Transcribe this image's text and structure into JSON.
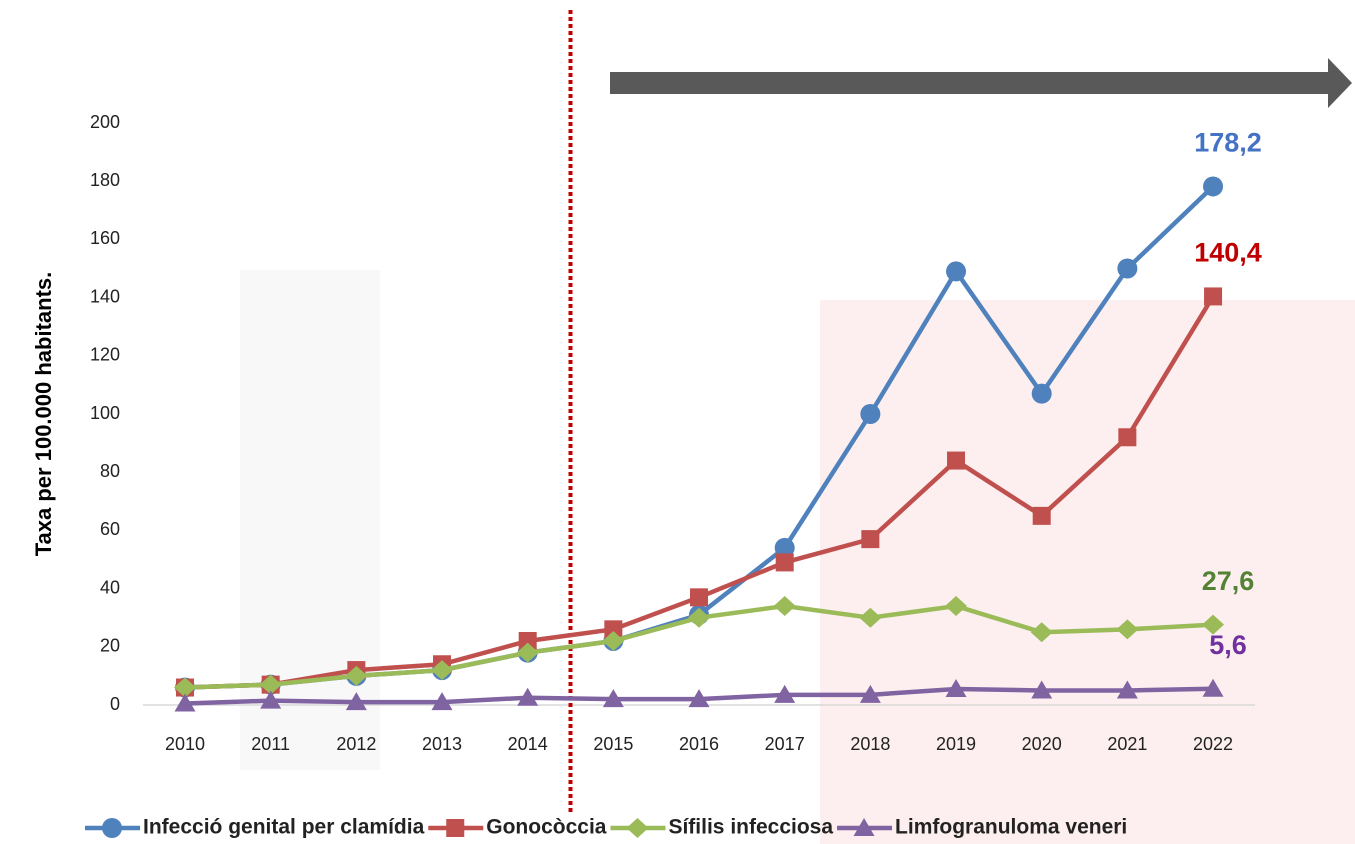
{
  "chart_data": {
    "type": "line",
    "y_axis_label": "Taxa per 100.000 habitants.",
    "categories": [
      "2010",
      "2011",
      "2012",
      "2013",
      "2014",
      "2015",
      "2016",
      "2017",
      "2018",
      "2019",
      "2020",
      "2021",
      "2022"
    ],
    "series": [
      {
        "name": "Infecció genital per clamídia",
        "color": "#4f81bd",
        "marker": "circle",
        "label_color": "#4472c4",
        "values": [
          6,
          7,
          10,
          12,
          18,
          22,
          31,
          54,
          100,
          149,
          107,
          150,
          178.2
        ],
        "value_labels": [
          null,
          null,
          null,
          null,
          null,
          null,
          null,
          null,
          null,
          null,
          null,
          null,
          "178,2"
        ]
      },
      {
        "name": "Gonocòccia",
        "color": "#c0504d",
        "marker": "square",
        "label_color": "#c00000",
        "values": [
          6,
          7,
          12,
          14,
          22,
          26,
          37,
          49,
          57,
          84,
          65,
          92,
          140.4
        ],
        "value_labels": [
          null,
          null,
          null,
          null,
          null,
          null,
          null,
          null,
          null,
          null,
          null,
          null,
          "140,4"
        ]
      },
      {
        "name": "Sífilis infecciosa",
        "color": "#9bbb59",
        "marker": "diamond",
        "label_color": "#548235",
        "values": [
          6,
          7,
          10,
          12,
          18,
          22,
          30,
          34,
          30,
          34,
          25,
          26,
          27.6
        ],
        "value_labels": [
          null,
          null,
          null,
          null,
          null,
          null,
          null,
          null,
          null,
          null,
          null,
          null,
          "27,6"
        ]
      },
      {
        "name": "Limfogranuloma veneri",
        "color": "#8064a2",
        "marker": "triangle",
        "label_color": "#7030a0",
        "values": [
          0.5,
          1.5,
          1,
          1,
          2.5,
          2,
          2,
          3.5,
          3.5,
          5.5,
          5,
          5,
          5.6
        ],
        "value_labels": [
          null,
          null,
          null,
          null,
          null,
          null,
          null,
          null,
          null,
          null,
          null,
          null,
          "5,6"
        ]
      }
    ],
    "ylim": [
      0,
      200
    ],
    "yticks": [
      0,
      20,
      40,
      60,
      80,
      100,
      120,
      140,
      160,
      180,
      200
    ],
    "legend": "bottom"
  }
}
